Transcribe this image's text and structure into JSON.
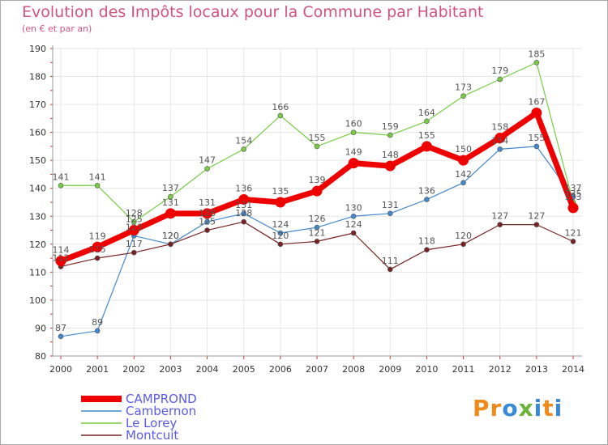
{
  "chart_data": {
    "type": "line",
    "title": "Evolution des Impôts locaux pour la Commune par Habitant",
    "subtitle": "(en € et par an)",
    "xlabel": "",
    "ylabel": "",
    "ylim": [
      80,
      190
    ],
    "y_ticks": [
      80,
      90,
      100,
      110,
      120,
      130,
      140,
      150,
      160,
      170,
      180,
      190
    ],
    "categories": [
      "2000",
      "2001",
      "2002",
      "2003",
      "2004",
      "2005",
      "2006",
      "2007",
      "2008",
      "2009",
      "2010",
      "2011",
      "2012",
      "2013",
      "2014"
    ],
    "series": [
      {
        "name": "Le Lorey",
        "color": "#77cc44",
        "values": [
          141,
          141,
          128,
          137,
          147,
          154,
          166,
          155,
          160,
          159,
          164,
          173,
          179,
          185,
          135
        ]
      },
      {
        "name": "Cambernon",
        "color": "#4488cc",
        "values": [
          87,
          89,
          123,
          120,
          128,
          131,
          124,
          126,
          130,
          131,
          136,
          142,
          154,
          155,
          137
        ]
      },
      {
        "name": "Montcuit",
        "color": "#772222",
        "values": [
          112,
          115,
          117,
          120,
          125,
          128,
          120,
          121,
          124,
          111,
          118,
          120,
          127,
          127,
          121
        ]
      },
      {
        "name": "CAMPROND",
        "color": "#ee0000",
        "values": [
          114,
          119,
          125,
          131,
          131,
          136,
          135,
          139,
          149,
          148,
          155,
          150,
          158,
          167,
          133
        ]
      }
    ],
    "legend": [
      "CAMPROND",
      "Cambernon",
      "Le Lorey",
      "Montcuit"
    ]
  },
  "logo": {
    "text": "Proxiti",
    "colors": [
      "#f08a1c",
      "#3a88d8",
      "#6ab43c"
    ]
  }
}
